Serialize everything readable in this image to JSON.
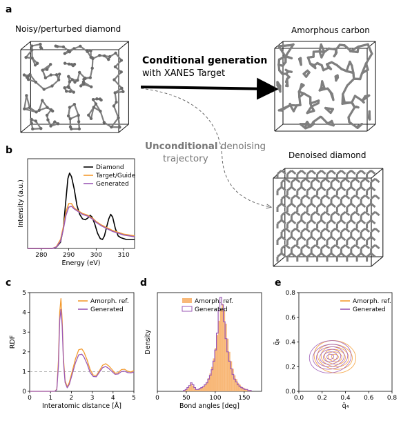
{
  "panels": {
    "a": "a",
    "b": "b",
    "c": "c",
    "d": "d",
    "e": "e"
  },
  "panel_a": {
    "left_caption": "Noisy/perturbed diamond",
    "right_top_caption": "Amorphous carbon",
    "right_bottom_caption": "Denoised diamond",
    "cond_title": "Conditional generation",
    "cond_subtitle": "with XANES Target",
    "uncond_bold": "Unconditional",
    "uncond_rest": " denoising",
    "uncond_line2": "trajectory"
  },
  "colors": {
    "diamond": "#000000",
    "target": "#f39a2e",
    "generated": "#9b59b6",
    "target_fill": "#f8b878",
    "atoms": "#7f7f7f",
    "box": "#1a1a1a",
    "dashed_ref": "#aaaaaa"
  },
  "chart_data": [
    {
      "id": "b",
      "type": "line",
      "xlabel": "Energy (eV)",
      "ylabel": "Intensity (a.u.)",
      "xlim": [
        275,
        314
      ],
      "xticks": [
        "280",
        "290",
        "300",
        "310"
      ],
      "legend": [
        "Diamond",
        "Target/Guide",
        "Generated"
      ],
      "legend_position": "top-right",
      "series": [
        {
          "name": "Diamond",
          "x": [
            275,
            284,
            285.5,
            287,
            288,
            289,
            289.7,
            290.3,
            291,
            292,
            293,
            294,
            295,
            296,
            297,
            297.8,
            298.5,
            299.5,
            300.5,
            301.5,
            302.3,
            303,
            303.8,
            304.6,
            305.3,
            306,
            307,
            308,
            309,
            310,
            311,
            312,
            314
          ],
          "y": [
            0.0,
            0.0,
            0.015,
            0.07,
            0.22,
            0.55,
            0.78,
            0.84,
            0.8,
            0.66,
            0.48,
            0.38,
            0.33,
            0.32,
            0.34,
            0.37,
            0.35,
            0.27,
            0.17,
            0.11,
            0.1,
            0.14,
            0.24,
            0.33,
            0.38,
            0.35,
            0.22,
            0.14,
            0.12,
            0.11,
            0.1,
            0.1,
            0.1
          ]
        },
        {
          "name": "Target/Guide",
          "x": [
            275,
            284,
            285.5,
            287,
            288,
            289,
            290,
            291,
            292,
            293,
            294,
            295,
            296,
            297,
            298,
            299,
            300,
            302,
            304,
            306,
            308,
            310,
            312,
            314
          ],
          "y": [
            0.0,
            0.0,
            0.02,
            0.1,
            0.24,
            0.41,
            0.5,
            0.5,
            0.45,
            0.43,
            0.41,
            0.39,
            0.38,
            0.37,
            0.35,
            0.33,
            0.3,
            0.26,
            0.23,
            0.2,
            0.18,
            0.16,
            0.15,
            0.14
          ]
        },
        {
          "name": "Generated",
          "x": [
            275,
            284,
            285.5,
            287,
            288,
            289,
            290,
            291,
            292,
            293,
            294,
            295,
            296,
            297,
            298,
            299,
            300,
            302,
            304,
            306,
            308,
            310,
            312,
            314
          ],
          "y": [
            0.0,
            0.0,
            0.015,
            0.08,
            0.21,
            0.37,
            0.46,
            0.47,
            0.44,
            0.42,
            0.4,
            0.38,
            0.37,
            0.36,
            0.34,
            0.32,
            0.29,
            0.25,
            0.22,
            0.19,
            0.17,
            0.15,
            0.14,
            0.13
          ]
        }
      ]
    },
    {
      "id": "c",
      "type": "line",
      "xlabel": "Interatomic distance [Å]",
      "ylabel": "RDF",
      "xlim": [
        0,
        5
      ],
      "ylim": [
        0,
        5
      ],
      "xticks": [
        "0",
        "1",
        "2",
        "3",
        "4",
        "5"
      ],
      "yticks": [
        "0",
        "1",
        "2",
        "3",
        "4",
        "5"
      ],
      "reference_line": 1,
      "legend": [
        "Amorph. ref.",
        "Generated"
      ],
      "legend_position": "top-right",
      "series": [
        {
          "name": "Amorph. ref.",
          "x": [
            0,
            1.2,
            1.3,
            1.38,
            1.44,
            1.5,
            1.56,
            1.62,
            1.7,
            1.8,
            1.9,
            2.05,
            2.2,
            2.35,
            2.5,
            2.6,
            2.75,
            2.9,
            3.05,
            3.2,
            3.35,
            3.5,
            3.65,
            3.8,
            3.95,
            4.1,
            4.25,
            4.4,
            4.55,
            4.7,
            4.85,
            5.0
          ],
          "y": [
            0,
            0,
            0.1,
            1.6,
            4.0,
            4.7,
            3.6,
            1.7,
            0.55,
            0.22,
            0.45,
            1.05,
            1.65,
            2.1,
            2.15,
            2.0,
            1.6,
            1.1,
            0.82,
            0.8,
            1.05,
            1.32,
            1.4,
            1.28,
            1.1,
            0.92,
            0.94,
            1.1,
            1.12,
            1.02,
            0.98,
            1.05
          ]
        },
        {
          "name": "Generated",
          "x": [
            0,
            1.2,
            1.3,
            1.38,
            1.44,
            1.5,
            1.56,
            1.62,
            1.7,
            1.8,
            1.9,
            2.05,
            2.2,
            2.35,
            2.5,
            2.6,
            2.75,
            2.9,
            3.05,
            3.2,
            3.35,
            3.5,
            3.65,
            3.8,
            3.95,
            4.1,
            4.25,
            4.4,
            4.55,
            4.7,
            4.85,
            5.0
          ],
          "y": [
            0,
            0,
            0.08,
            1.3,
            3.6,
            4.15,
            3.3,
            1.5,
            0.45,
            0.18,
            0.35,
            0.9,
            1.45,
            1.85,
            1.88,
            1.75,
            1.4,
            0.95,
            0.75,
            0.74,
            0.98,
            1.2,
            1.26,
            1.15,
            1.0,
            0.86,
            0.88,
            1.0,
            1.02,
            0.95,
            0.93,
            0.98
          ]
        }
      ]
    },
    {
      "id": "d",
      "type": "bar",
      "xlabel": "Bond angles [deg]",
      "ylabel": "Density",
      "xlim": [
        0,
        180
      ],
      "xticks": [
        "0",
        "50",
        "100",
        "150"
      ],
      "legend": [
        "Amorph. ref.",
        "Generated"
      ],
      "legend_position": "top-right",
      "bin_width": 3,
      "series": [
        {
          "name": "Amorph. ref.",
          "bin_start": [
            45,
            48,
            51,
            54,
            57,
            60,
            63,
            66,
            69,
            72,
            75,
            78,
            81,
            84,
            87,
            90,
            93,
            96,
            99,
            102,
            105,
            108,
            111,
            114,
            117,
            120,
            123,
            126,
            129,
            132,
            135,
            138,
            141,
            144,
            147,
            150,
            153,
            156,
            159
          ],
          "values": [
            0.01,
            0.02,
            0.03,
            0.05,
            0.08,
            0.06,
            0.03,
            0.02,
            0.02,
            0.03,
            0.04,
            0.05,
            0.07,
            0.1,
            0.14,
            0.19,
            0.26,
            0.35,
            0.46,
            0.6,
            0.75,
            0.87,
            0.93,
            0.86,
            0.72,
            0.56,
            0.42,
            0.32,
            0.24,
            0.17,
            0.13,
            0.09,
            0.07,
            0.05,
            0.04,
            0.03,
            0.02,
            0.01,
            0.01
          ]
        },
        {
          "name": "Generated",
          "bin_start": [
            45,
            48,
            51,
            54,
            57,
            60,
            63,
            66,
            69,
            72,
            75,
            78,
            81,
            84,
            87,
            90,
            93,
            96,
            99,
            102,
            105,
            108,
            111,
            114,
            117,
            120,
            123,
            126,
            129,
            132,
            135,
            138,
            141,
            144,
            147,
            150,
            153,
            156,
            159
          ],
          "values": [
            0.01,
            0.02,
            0.04,
            0.06,
            0.09,
            0.07,
            0.04,
            0.02,
            0.02,
            0.03,
            0.04,
            0.05,
            0.07,
            0.09,
            0.13,
            0.17,
            0.23,
            0.32,
            0.44,
            0.62,
            0.86,
            1.0,
            0.92,
            0.74,
            0.56,
            0.42,
            0.32,
            0.24,
            0.18,
            0.13,
            0.1,
            0.07,
            0.05,
            0.04,
            0.03,
            0.02,
            0.02,
            0.01,
            0.01
          ]
        }
      ]
    },
    {
      "id": "e",
      "type": "scatter",
      "xlabel": "q̄₄",
      "ylabel": "q̄₆",
      "xlim": [
        0,
        0.8
      ],
      "ylim": [
        0,
        0.8
      ],
      "xticks": [
        "0.0",
        "0.2",
        "0.4",
        "0.6",
        "0.8"
      ],
      "yticks": [
        "0.0",
        "0.2",
        "0.4",
        "0.6",
        "0.8"
      ],
      "legend": [
        "Amorph. ref.",
        "Generated"
      ],
      "legend_position": "top-right",
      "series": [
        {
          "name": "Amorph. ref.",
          "center": [
            0.31,
            0.28
          ],
          "radii_x": [
            0.03,
            0.06,
            0.09,
            0.12,
            0.15,
            0.18
          ],
          "radii_y": [
            0.02,
            0.04,
            0.06,
            0.08,
            0.1,
            0.13
          ]
        },
        {
          "name": "Generated",
          "center": [
            0.27,
            0.28
          ],
          "radii_x": [
            0.03,
            0.06,
            0.09,
            0.12,
            0.15,
            0.18
          ],
          "radii_y": [
            0.02,
            0.04,
            0.06,
            0.08,
            0.1,
            0.13
          ]
        }
      ]
    }
  ]
}
